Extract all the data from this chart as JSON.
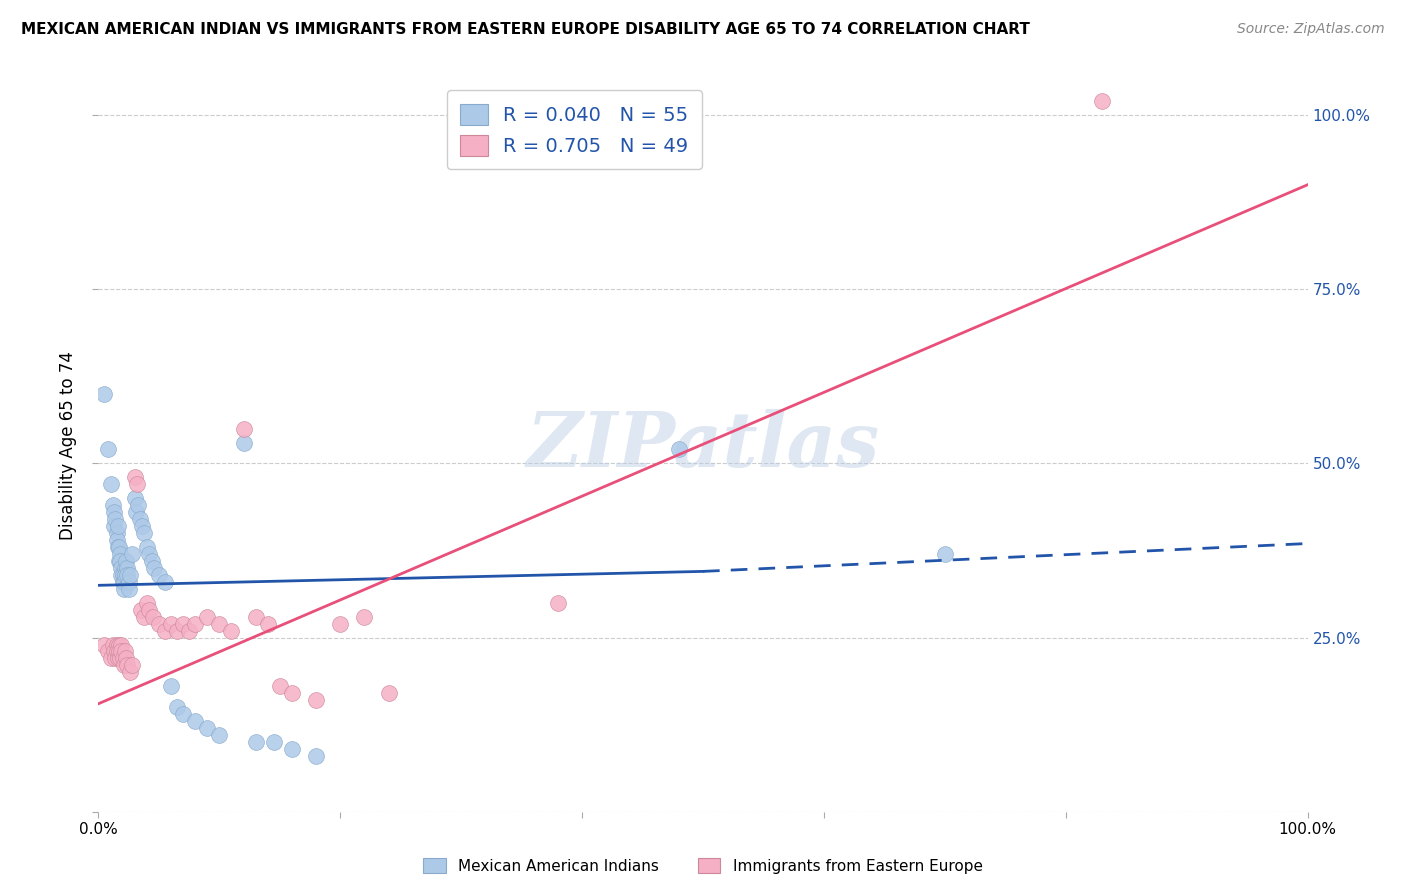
{
  "title": "MEXICAN AMERICAN INDIAN VS IMMIGRANTS FROM EASTERN EUROPE DISABILITY AGE 65 TO 74 CORRELATION CHART",
  "source": "Source: ZipAtlas.com",
  "ylabel": "Disability Age 65 to 74",
  "xlim": [
    0.0,
    1.0
  ],
  "ylim": [
    0.0,
    1.05
  ],
  "watermark": "ZIPatlas",
  "blue_R": 0.04,
  "blue_N": 55,
  "pink_R": 0.705,
  "pink_N": 49,
  "blue_color": "#adc9e8",
  "pink_color": "#f5b0c5",
  "blue_line_color": "#2255aa",
  "pink_line_color": "#e8507a",
  "blue_line_start_x": 0.0,
  "blue_line_start_y": 0.325,
  "blue_line_solid_end_x": 0.5,
  "blue_line_solid_end_y": 0.345,
  "blue_line_end_x": 1.0,
  "blue_line_end_y": 0.385,
  "pink_line_start_x": 0.0,
  "pink_line_start_y": 0.155,
  "pink_line_end_x": 1.0,
  "pink_line_end_y": 0.9,
  "blue_scatter": [
    [
      0.005,
      0.6
    ],
    [
      0.008,
      0.52
    ],
    [
      0.01,
      0.47
    ],
    [
      0.012,
      0.44
    ],
    [
      0.013,
      0.43
    ],
    [
      0.013,
      0.41
    ],
    [
      0.014,
      0.42
    ],
    [
      0.015,
      0.4
    ],
    [
      0.015,
      0.39
    ],
    [
      0.016,
      0.41
    ],
    [
      0.016,
      0.38
    ],
    [
      0.017,
      0.38
    ],
    [
      0.017,
      0.36
    ],
    [
      0.018,
      0.37
    ],
    [
      0.018,
      0.36
    ],
    [
      0.019,
      0.35
    ],
    [
      0.019,
      0.34
    ],
    [
      0.02,
      0.34
    ],
    [
      0.02,
      0.33
    ],
    [
      0.021,
      0.33
    ],
    [
      0.021,
      0.32
    ],
    [
      0.022,
      0.35
    ],
    [
      0.022,
      0.34
    ],
    [
      0.023,
      0.36
    ],
    [
      0.024,
      0.35
    ],
    [
      0.024,
      0.34
    ],
    [
      0.025,
      0.33
    ],
    [
      0.025,
      0.32
    ],
    [
      0.026,
      0.34
    ],
    [
      0.028,
      0.37
    ],
    [
      0.03,
      0.45
    ],
    [
      0.031,
      0.43
    ],
    [
      0.033,
      0.44
    ],
    [
      0.034,
      0.42
    ],
    [
      0.036,
      0.41
    ],
    [
      0.038,
      0.4
    ],
    [
      0.04,
      0.38
    ],
    [
      0.042,
      0.37
    ],
    [
      0.044,
      0.36
    ],
    [
      0.046,
      0.35
    ],
    [
      0.05,
      0.34
    ],
    [
      0.055,
      0.33
    ],
    [
      0.06,
      0.18
    ],
    [
      0.065,
      0.15
    ],
    [
      0.07,
      0.14
    ],
    [
      0.08,
      0.13
    ],
    [
      0.09,
      0.12
    ],
    [
      0.1,
      0.11
    ],
    [
      0.12,
      0.53
    ],
    [
      0.13,
      0.1
    ],
    [
      0.145,
      0.1
    ],
    [
      0.16,
      0.09
    ],
    [
      0.18,
      0.08
    ],
    [
      0.48,
      0.52
    ],
    [
      0.7,
      0.37
    ]
  ],
  "pink_scatter": [
    [
      0.005,
      0.24
    ],
    [
      0.008,
      0.23
    ],
    [
      0.01,
      0.22
    ],
    [
      0.012,
      0.24
    ],
    [
      0.013,
      0.23
    ],
    [
      0.014,
      0.22
    ],
    [
      0.015,
      0.24
    ],
    [
      0.015,
      0.23
    ],
    [
      0.016,
      0.22
    ],
    [
      0.017,
      0.24
    ],
    [
      0.017,
      0.23
    ],
    [
      0.018,
      0.22
    ],
    [
      0.019,
      0.24
    ],
    [
      0.019,
      0.23
    ],
    [
      0.02,
      0.22
    ],
    [
      0.021,
      0.21
    ],
    [
      0.022,
      0.23
    ],
    [
      0.023,
      0.22
    ],
    [
      0.024,
      0.21
    ],
    [
      0.026,
      0.2
    ],
    [
      0.028,
      0.21
    ],
    [
      0.03,
      0.48
    ],
    [
      0.032,
      0.47
    ],
    [
      0.035,
      0.29
    ],
    [
      0.038,
      0.28
    ],
    [
      0.04,
      0.3
    ],
    [
      0.042,
      0.29
    ],
    [
      0.045,
      0.28
    ],
    [
      0.05,
      0.27
    ],
    [
      0.055,
      0.26
    ],
    [
      0.06,
      0.27
    ],
    [
      0.065,
      0.26
    ],
    [
      0.07,
      0.27
    ],
    [
      0.075,
      0.26
    ],
    [
      0.08,
      0.27
    ],
    [
      0.09,
      0.28
    ],
    [
      0.1,
      0.27
    ],
    [
      0.11,
      0.26
    ],
    [
      0.12,
      0.55
    ],
    [
      0.13,
      0.28
    ],
    [
      0.14,
      0.27
    ],
    [
      0.15,
      0.18
    ],
    [
      0.16,
      0.17
    ],
    [
      0.18,
      0.16
    ],
    [
      0.2,
      0.27
    ],
    [
      0.22,
      0.28
    ],
    [
      0.24,
      0.17
    ],
    [
      0.38,
      0.3
    ],
    [
      0.83,
      1.02
    ]
  ]
}
